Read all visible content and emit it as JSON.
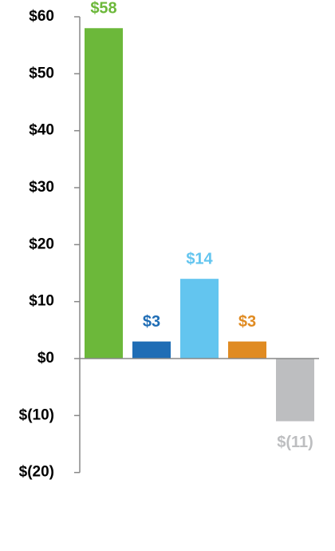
{
  "chart_data": {
    "type": "bar",
    "categories": [
      null,
      null,
      null,
      null,
      null
    ],
    "values": [
      58,
      3,
      14,
      3,
      -11
    ],
    "value_labels": [
      "$58",
      "$3",
      "$14",
      "$3",
      "$(11)"
    ],
    "colors": [
      "#6cb83a",
      "#1f6db5",
      "#63c5ef",
      "#e08b22",
      "#bdbec0"
    ],
    "ylim": [
      -20,
      60
    ],
    "yticks": [
      {
        "value": -20,
        "label": "$(20)"
      },
      {
        "value": -10,
        "label": "$(10)"
      },
      {
        "value": 0,
        "label": "$0"
      },
      {
        "value": 10,
        "label": "$10"
      },
      {
        "value": 20,
        "label": "$20"
      },
      {
        "value": 30,
        "label": "$30"
      },
      {
        "value": 40,
        "label": "$40"
      },
      {
        "value": 50,
        "label": "$50"
      },
      {
        "value": 60,
        "label": "$60"
      }
    ],
    "grid": false
  }
}
